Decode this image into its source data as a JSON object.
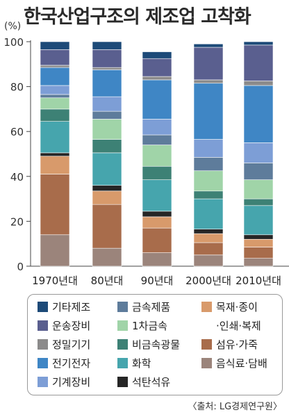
{
  "chart_data": {
    "type": "bar",
    "stacked": true,
    "title": "한국산업구조의 제조업 고착화",
    "unit_label": "(%)",
    "ylim": [
      0,
      100
    ],
    "yticks": [
      "0",
      "20",
      "40",
      "60",
      "80",
      "100"
    ],
    "categories": [
      "1970년대",
      "80년대",
      "90년대",
      "2000년대",
      "2010년대"
    ],
    "series": [
      {
        "name": "음식료·담배",
        "color": "#9b847b",
        "values": [
          14.0,
          8.0,
          6.0,
          5.0,
          3.5
        ]
      },
      {
        "name": "섬유·가죽",
        "color": "#a86c4b",
        "values": [
          27.0,
          19.5,
          11.0,
          5.5,
          5.0
        ]
      },
      {
        "name": "목재·종이·인쇄·복제",
        "color": "#d89a6b",
        "values": [
          8.0,
          6.0,
          5.0,
          4.0,
          3.5
        ]
      },
      {
        "name": "석탄석유",
        "color": "#262626",
        "values": [
          1.5,
          2.5,
          2.5,
          2.0,
          2.0
        ]
      },
      {
        "name": "화학",
        "color": "#46a5ad",
        "values": [
          14.0,
          14.5,
          14.0,
          13.5,
          13.0
        ]
      },
      {
        "name": "비금속광물",
        "color": "#3d8175",
        "values": [
          5.5,
          6.0,
          6.0,
          3.5,
          3.0
        ]
      },
      {
        "name": "1차금속",
        "color": "#a0d4a8",
        "values": [
          5.0,
          9.0,
          9.5,
          9.0,
          8.5
        ]
      },
      {
        "name": "금속제품",
        "color": "#5e7c9b",
        "values": [
          1.5,
          3.5,
          4.5,
          6.0,
          7.5
        ]
      },
      {
        "name": "기계장비",
        "color": "#7d9ed6",
        "values": [
          4.0,
          6.5,
          7.0,
          8.0,
          9.0
        ]
      },
      {
        "name": "전기전자",
        "color": "#3f86c5",
        "values": [
          8.0,
          12.0,
          17.5,
          25.0,
          25.5
        ]
      },
      {
        "name": "정밀기기",
        "color": "#8c8b8b",
        "values": [
          1.0,
          1.0,
          1.5,
          1.5,
          2.0
        ]
      },
      {
        "name": "운송장비",
        "color": "#5a5f8f",
        "values": [
          7.0,
          8.0,
          8.0,
          14.5,
          16.0
        ]
      },
      {
        "name": "기타제조",
        "color": "#1d4a78",
        "values": [
          3.5,
          3.5,
          3.0,
          1.5,
          1.5
        ]
      }
    ]
  },
  "legend": [
    {
      "label": "기타제조",
      "color": "#1d4a78"
    },
    {
      "label": "운송장비",
      "color": "#5a5f8f"
    },
    {
      "label": "정밀기기",
      "color": "#8c8b8b"
    },
    {
      "label": "전기전자",
      "color": "#3f86c5"
    },
    {
      "label": "기계장비",
      "color": "#7d9ed6"
    },
    {
      "label": "금속제품",
      "color": "#5e7c9b"
    },
    {
      "label": "1차금속",
      "color": "#a0d4a8"
    },
    {
      "label": "비금속광물",
      "color": "#3d8175"
    },
    {
      "label": "화학",
      "color": "#46a5ad"
    },
    {
      "label": "석탄석유",
      "color": "#262626"
    },
    {
      "label": "목재·종이",
      "color": "#d89a6b"
    },
    {
      "label": "·인쇄·복제",
      "color": ""
    },
    {
      "label": "섬유·가죽",
      "color": "#a86c4b"
    },
    {
      "label": "음식료·담배",
      "color": "#9b847b"
    }
  ],
  "source": "〈출처: LG경제연구원〉"
}
